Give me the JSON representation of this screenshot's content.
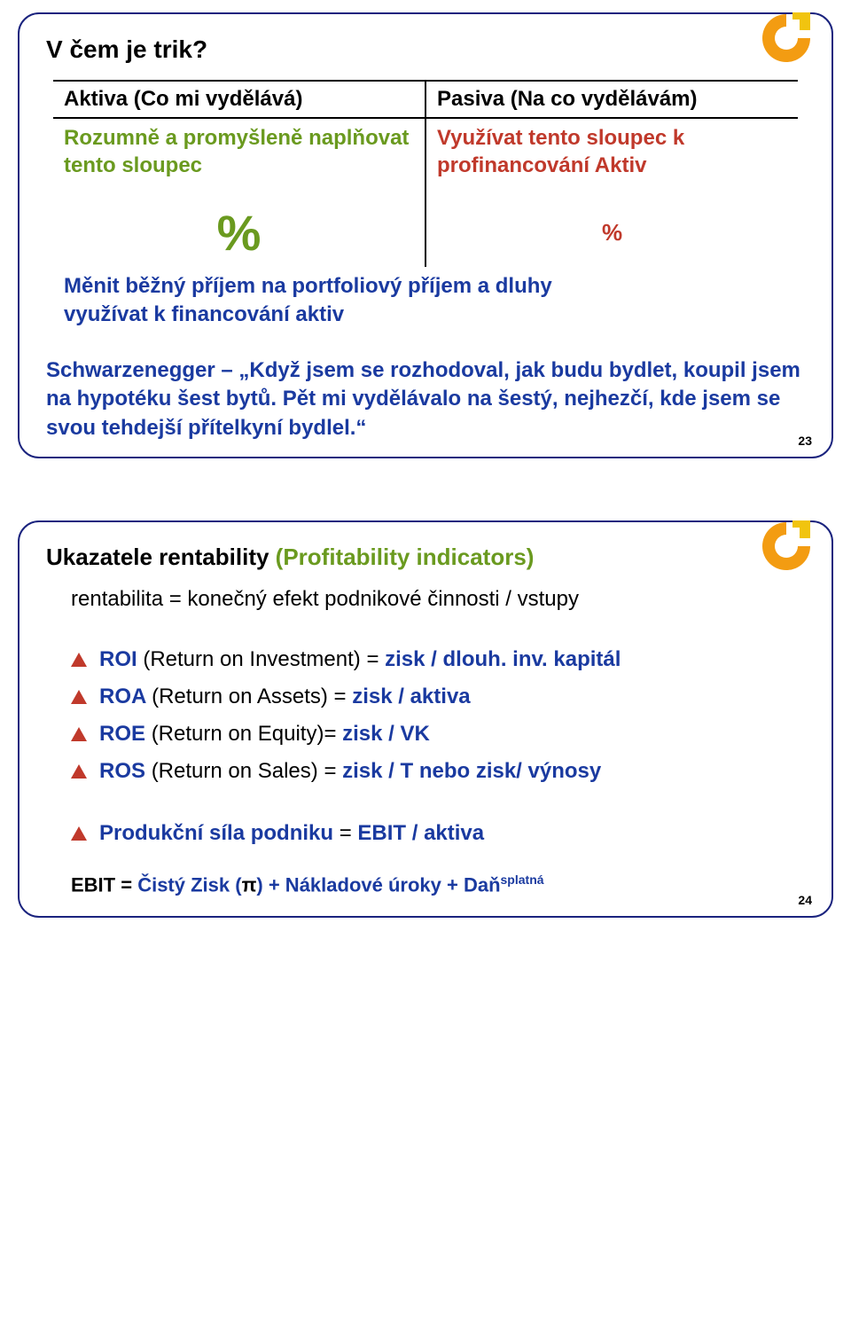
{
  "colors": {
    "border": "#1a237e",
    "green": "#6a9a1f",
    "red": "#c0392b",
    "blue": "#1a3aa0",
    "logo_orange": "#f39c12",
    "logo_yellow": "#f1c40f"
  },
  "slide1": {
    "title": "V čem je trik?",
    "col_left_header": "Aktiva (Co mi vydělává)",
    "col_right_header": "Pasiva (Na co vydělávám)",
    "left_text": "Rozumně a promyšleně naplňovat tento sloupec",
    "right_text": "Využívat tento sloupec k profinancování Aktiv",
    "pct_big": "%",
    "pct_small": "%",
    "below_left": "Měnit běžný příjem na portfoliový příjem a dluhy využívat k financování aktiv",
    "quote": "Schwarzenegger – „Když jsem se rozhodoval, jak budu bydlet, koupil jsem na hypotéku šest bytů. Pět mi vydělávalo na šestý, nejhezčí, kde jsem se svou tehdejší přítelkyní bydlel.“",
    "page": "23"
  },
  "slide2": {
    "title_a": "Ukazatele rentability ",
    "title_b": "(Profitability indicators)",
    "definition": "rentabilita = konečný efekt podnikové činnosti / vstupy",
    "bullets": [
      {
        "b": "ROI ",
        "n": "(Return on Investment) = ",
        "t": "zisk / dlouh. inv. kapitál"
      },
      {
        "b": "ROA ",
        "n": "(Return on Assets) = ",
        "t": "zisk / aktiva"
      },
      {
        "b": "ROE ",
        "n": "(Return on Equity)= ",
        "t": "zisk / VK"
      },
      {
        "b": "ROS ",
        "n": "(Return on Sales) = ",
        "t": "zisk / T nebo zisk/ výnosy"
      },
      {
        "b": "Produkční síla podniku ",
        "n": "= ",
        "t": "EBIT / aktiva"
      }
    ],
    "formula_a": "EBIT = ",
    "formula_b": "Čistý Zisk (",
    "formula_pi": "π",
    "formula_c": ") + Nákladové úroky + Daň",
    "formula_sup": "splatná",
    "page": "24"
  }
}
